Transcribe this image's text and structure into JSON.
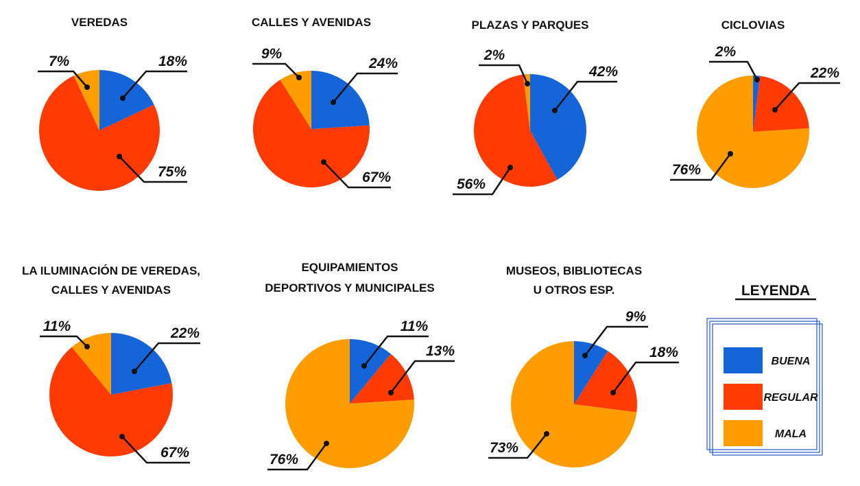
{
  "colors": {
    "buena": "#1565D8",
    "regular": "#FF3A03",
    "mala": "#FF9D00",
    "ink": "#111111",
    "frame": "#2F63C9"
  },
  "legend": {
    "title": "LEYENDA",
    "items": [
      {
        "key": "buena",
        "label": "BUENA"
      },
      {
        "key": "regular",
        "label": "REGULAR"
      },
      {
        "key": "mala",
        "label": "MALA"
      }
    ]
  },
  "chart_data": [
    {
      "type": "pie",
      "title": [
        "VEREDAS"
      ],
      "categories": [
        "BUENA",
        "REGULAR",
        "MALA"
      ],
      "values": [
        18,
        75,
        7
      ],
      "labels": [
        "18%",
        "75%",
        "7%"
      ]
    },
    {
      "type": "pie",
      "title": [
        "CALLES Y AVENIDAS"
      ],
      "categories": [
        "BUENA",
        "REGULAR",
        "MALA"
      ],
      "values": [
        24,
        67,
        9
      ],
      "labels": [
        "24%",
        "67%",
        "9%"
      ]
    },
    {
      "type": "pie",
      "title": [
        "PLAZAS Y PARQUES"
      ],
      "categories": [
        "BUENA",
        "REGULAR",
        "MALA"
      ],
      "values": [
        42,
        56,
        2
      ],
      "labels": [
        "42%",
        "56%",
        "2%"
      ]
    },
    {
      "type": "pie",
      "title": [
        "CICLOVIAS"
      ],
      "categories": [
        "BUENA",
        "REGULAR",
        "MALA"
      ],
      "values": [
        2,
        22,
        76
      ],
      "labels": [
        "2%",
        "22%",
        "76%"
      ]
    },
    {
      "type": "pie",
      "title": [
        "LA ILUMINACIÓN DE VEREDAS,",
        "CALLES Y AVENIDAS"
      ],
      "categories": [
        "BUENA",
        "REGULAR",
        "MALA"
      ],
      "values": [
        22,
        67,
        11
      ],
      "labels": [
        "22%",
        "67%",
        "11%"
      ]
    },
    {
      "type": "pie",
      "title": [
        "EQUIPAMIENTOS",
        "DEPORTIVOS Y MUNICIPALES"
      ],
      "categories": [
        "BUENA",
        "REGULAR",
        "MALA"
      ],
      "values": [
        11,
        13,
        76
      ],
      "labels": [
        "11%",
        "13%",
        "76%"
      ]
    },
    {
      "type": "pie",
      "title": [
        "MUSEOS, BIBLIOTECAS",
        "U OTROS ESP."
      ],
      "categories": [
        "BUENA",
        "REGULAR",
        "MALA"
      ],
      "values": [
        9,
        18,
        73
      ],
      "labels": [
        "9%",
        "18%",
        "73%"
      ]
    }
  ]
}
